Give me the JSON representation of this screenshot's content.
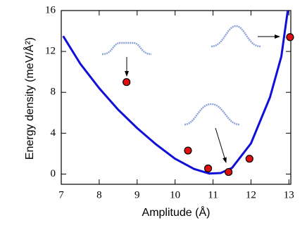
{
  "chart_data": {
    "type": "line",
    "xlabel": "Amplitude (Å)",
    "ylabel": "Energy density (meV/Å²)",
    "xlim": [
      7,
      13.05
    ],
    "ylim": [
      -1,
      16
    ],
    "xticks": [
      7,
      8,
      9,
      10,
      11,
      12,
      13
    ],
    "yticks": [
      0,
      4,
      8,
      12,
      16
    ],
    "series": [
      {
        "type": "line",
        "color": "#1010d8",
        "x": [
          7.05,
          7.5,
          8,
          8.5,
          9,
          9.5,
          10,
          10.5,
          10.9,
          11.2,
          11.5,
          12,
          12.5,
          12.8,
          12.97
        ],
        "values": [
          13.5,
          10.8,
          8.4,
          6.3,
          4.5,
          2.9,
          1.5,
          0.5,
          0.05,
          0.1,
          0.6,
          3.0,
          7.5,
          11.5,
          16
        ]
      },
      {
        "type": "scatter",
        "color": "#e01010",
        "x": [
          8.72,
          10.34,
          10.87,
          11.41,
          11.96,
          13.03
        ],
        "values": [
          9.0,
          2.3,
          0.55,
          0.2,
          1.5,
          13.4
        ]
      }
    ]
  }
}
